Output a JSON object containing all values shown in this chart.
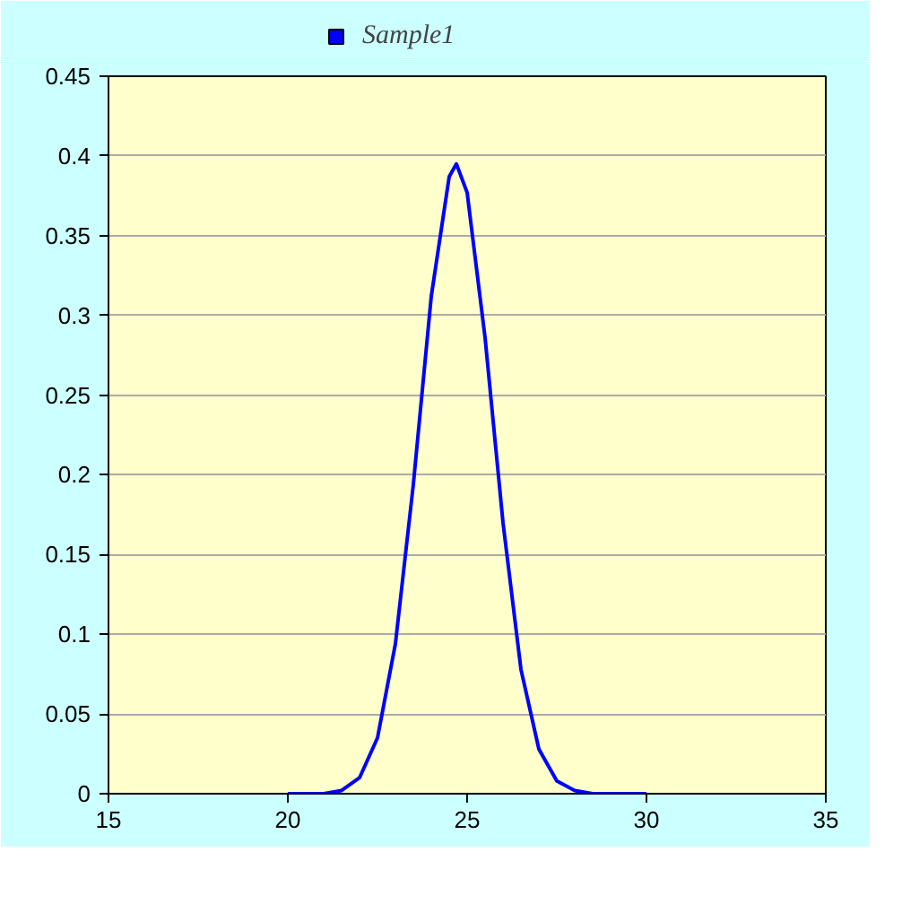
{
  "chart_data": {
    "type": "line",
    "x": [
      20,
      20.5,
      21,
      21.5,
      22,
      22.5,
      23,
      23.5,
      24,
      24.5,
      24.7,
      25,
      25.5,
      26,
      26.5,
      27,
      27.5,
      28,
      28.5,
      29,
      30
    ],
    "series": [
      {
        "name": "Sample1",
        "color": "#0000ff",
        "values": [
          0,
          0,
          0,
          0.002,
          0.01,
          0.035,
          0.094,
          0.194,
          0.312,
          0.387,
          0.395,
          0.377,
          0.286,
          0.17,
          0.078,
          0.028,
          0.008,
          0.002,
          0,
          0,
          0
        ]
      }
    ],
    "xlim": [
      15,
      35
    ],
    "xticks": [
      15,
      20,
      25,
      30,
      35
    ],
    "ylim": [
      0,
      0.45
    ],
    "yticks": [
      0,
      0.05,
      0.1,
      0.15,
      0.2,
      0.25,
      0.3,
      0.35,
      0.4,
      0.45
    ],
    "grid": "y",
    "legend": "top left",
    "line_style": "solid"
  }
}
